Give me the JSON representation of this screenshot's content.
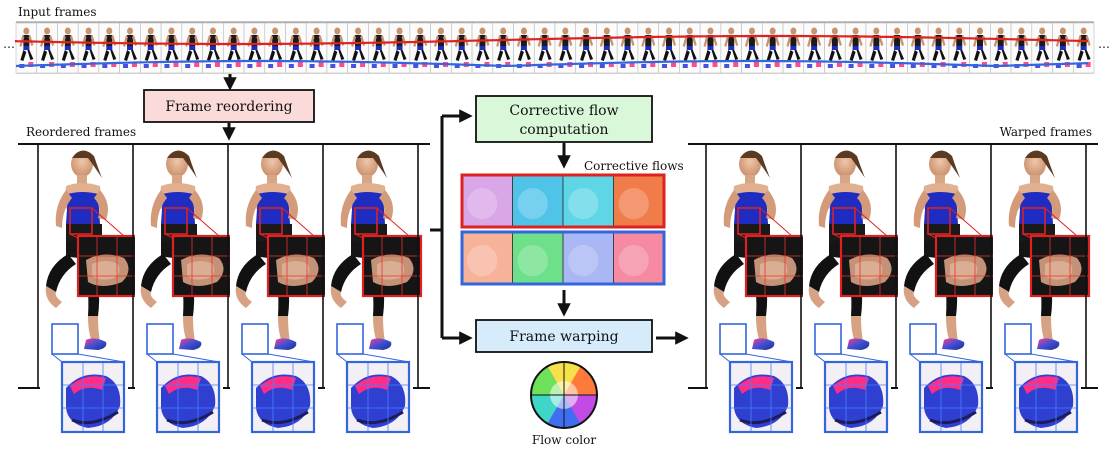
{
  "labels": {
    "input_frames": "Input frames",
    "ellipsis_left": "…",
    "ellipsis_right": "…",
    "frame_reordering": "Frame reordering",
    "reordered_frames": "Reordered frames",
    "corrective_flow_line1": "Corrective flow",
    "corrective_flow_line2": "computation",
    "corrective_flows": "Corrective flows",
    "frame_warping": "Frame warping",
    "warped_frames": "Warped frames",
    "flow_color": "Flow color"
  },
  "colors": {
    "frame_reordering_fill": "#fbdada",
    "corrective_flow_fill": "#d9f7d9",
    "frame_warping_fill": "#d6ecfa",
    "red_outline": "#dd2222",
    "blue_outline": "#3366dd"
  },
  "counts": {
    "input_frames": 52,
    "reordered_frames": 4,
    "warped_frames": 4,
    "flow_tiles_per_row": 4
  },
  "flow_tiles": {
    "red_row": [
      "#d9a6e8",
      "#4fc4e8",
      "#5fd6e6",
      "#f07c4a"
    ],
    "blue_row": [
      "#f7b39a",
      "#6ee08a",
      "#a9b7f4",
      "#f58aa2"
    ]
  }
}
